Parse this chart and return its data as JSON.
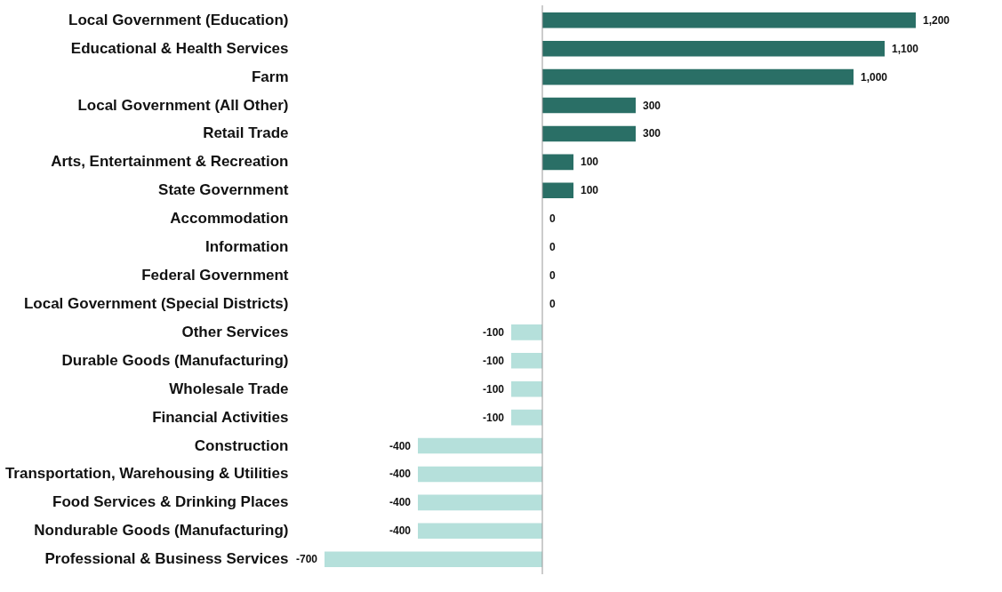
{
  "chart_data": {
    "type": "bar",
    "orientation": "horizontal",
    "tick_labels": "y",
    "categories": [
      "Local Government (Education)",
      "Educational & Health Services",
      "Farm",
      "Local Government (All Other)",
      "Retail Trade",
      "Arts, Entertainment & Recreation",
      "State Government",
      "Accommodation",
      "Information",
      "Federal Government",
      "Local Government (Special Districts)",
      "Other Services",
      "Durable Goods (Manufacturing)",
      "Wholesale Trade",
      "Financial Activities",
      "Construction",
      "Transportation, Warehousing & Utilities",
      "Food Services & Drinking Places",
      "Nondurable Goods (Manufacturing)",
      "Professional & Business Services"
    ],
    "values": [
      1200,
      1100,
      1000,
      300,
      300,
      100,
      100,
      0,
      0,
      0,
      0,
      -100,
      -100,
      -100,
      -100,
      -400,
      -400,
      -400,
      -400,
      -700
    ],
    "value_labels": [
      "1,200",
      "1,100",
      "1,000",
      "300",
      "300",
      "100",
      "100",
      "0",
      "0",
      "0",
      "0",
      "-100",
      "-100",
      "-100",
      "-100",
      "-400",
      "-400",
      "-400",
      "-400",
      "-700"
    ],
    "colors": [
      "#2a6f66",
      "#2a6f66",
      "#2a6f66",
      "#2a6f66",
      "#2a6f66",
      "#2a6f66",
      "#2a6f66",
      "#2a6f66",
      "#2a6f66",
      "#2a6f66",
      "#2a6f66",
      "#b5e0db",
      "#b5e0db",
      "#b5e0db",
      "#b5e0db",
      "#b5e0db",
      "#b5e0db",
      "#b5e0db",
      "#b5e0db",
      "#b5e0db"
    ],
    "ref_lines": [
      {
        "axis": "x",
        "value": 0,
        "color": "#999999"
      }
    ]
  }
}
